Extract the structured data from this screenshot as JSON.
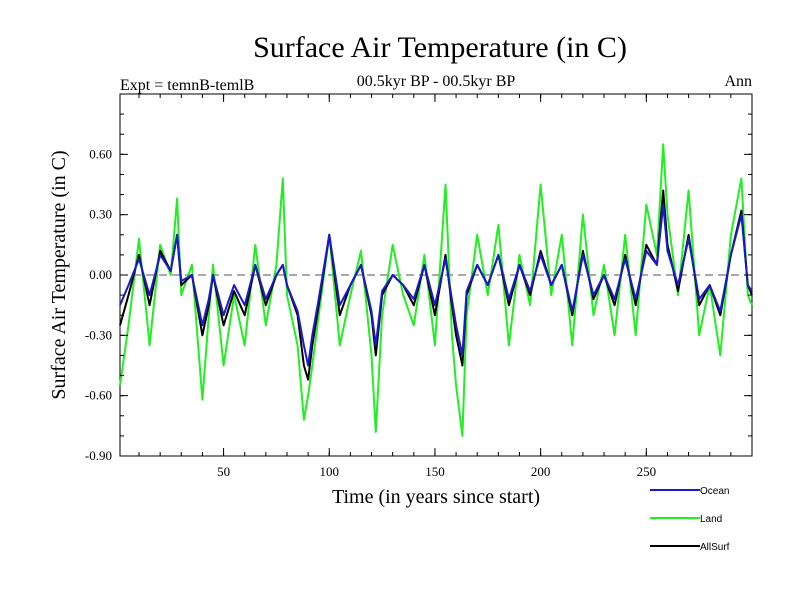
{
  "chart_data": {
    "type": "line",
    "title": "Surface Air Temperature (in C)",
    "subtitle_left": "Expt = temnB-temlB",
    "subtitle_center": "00.5kyr BP - 00.5kyr BP",
    "subtitle_right": "Ann",
    "xlabel": "Time (in years since start)",
    "ylabel": "Surface Air Temperature (in C)",
    "xlim": [
      1,
      300
    ],
    "ylim": [
      -0.9,
      0.9
    ],
    "xticks": [
      50,
      100,
      150,
      200,
      250
    ],
    "xtick_labels": [
      "50",
      "100",
      "150",
      "200",
      "250"
    ],
    "yticks": [
      -0.9,
      -0.6,
      -0.3,
      0.0,
      0.3,
      0.6
    ],
    "ytick_labels": [
      "-0.90",
      "-0.60",
      "-0.30",
      "0.00",
      "0.30",
      "0.60"
    ],
    "zero_line": 0.0,
    "legend_position": "bottom-right",
    "series": [
      {
        "name": "Land",
        "color": "#22ee22",
        "x": [
          1,
          5,
          10,
          15,
          20,
          25,
          28,
          30,
          35,
          40,
          43,
          45,
          50,
          55,
          60,
          65,
          70,
          75,
          78,
          80,
          85,
          88,
          90,
          92,
          95,
          100,
          105,
          110,
          115,
          120,
          122,
          125,
          130,
          135,
          140,
          145,
          150,
          155,
          158,
          160,
          163,
          165,
          170,
          175,
          180,
          185,
          190,
          195,
          200,
          205,
          210,
          215,
          220,
          225,
          230,
          235,
          240,
          245,
          250,
          255,
          258,
          260,
          265,
          270,
          275,
          280,
          285,
          290,
          295,
          298,
          300
        ],
        "values": [
          -0.55,
          -0.25,
          0.18,
          -0.35,
          0.15,
          0.0,
          0.38,
          -0.1,
          0.05,
          -0.62,
          -0.2,
          0.05,
          -0.45,
          -0.1,
          -0.35,
          0.15,
          -0.25,
          0.05,
          0.48,
          -0.1,
          -0.35,
          -0.72,
          -0.6,
          -0.45,
          -0.2,
          0.2,
          -0.35,
          -0.1,
          0.12,
          -0.4,
          -0.78,
          -0.2,
          0.15,
          -0.1,
          -0.25,
          0.1,
          -0.35,
          0.45,
          -0.3,
          -0.55,
          -0.8,
          -0.2,
          0.2,
          -0.1,
          0.25,
          -0.35,
          0.1,
          -0.15,
          0.45,
          -0.1,
          0.2,
          -0.35,
          0.3,
          -0.2,
          0.05,
          -0.3,
          0.2,
          -0.3,
          0.35,
          0.1,
          0.65,
          0.3,
          -0.1,
          0.42,
          -0.3,
          -0.05,
          -0.4,
          0.2,
          0.48,
          -0.1,
          -0.15
        ]
      },
      {
        "name": "AllSurf",
        "color": "#000000",
        "x": [
          1,
          5,
          10,
          15,
          20,
          25,
          28,
          30,
          35,
          40,
          43,
          45,
          50,
          55,
          60,
          65,
          70,
          75,
          78,
          80,
          85,
          88,
          90,
          92,
          95,
          100,
          105,
          110,
          115,
          120,
          122,
          125,
          130,
          135,
          140,
          145,
          150,
          155,
          158,
          160,
          163,
          165,
          170,
          175,
          180,
          185,
          190,
          195,
          200,
          205,
          210,
          215,
          220,
          225,
          230,
          235,
          240,
          245,
          250,
          255,
          258,
          260,
          265,
          270,
          275,
          280,
          285,
          290,
          295,
          298,
          300
        ],
        "values": [
          -0.25,
          -0.1,
          0.1,
          -0.15,
          0.12,
          0.02,
          0.2,
          -0.05,
          0.0,
          -0.3,
          -0.15,
          0.0,
          -0.25,
          -0.08,
          -0.2,
          0.05,
          -0.15,
          0.0,
          0.05,
          -0.05,
          -0.2,
          -0.45,
          -0.52,
          -0.35,
          -0.15,
          0.2,
          -0.2,
          -0.05,
          0.05,
          -0.2,
          -0.4,
          -0.1,
          0.0,
          -0.05,
          -0.15,
          0.05,
          -0.2,
          0.1,
          -0.15,
          -0.3,
          -0.45,
          -0.1,
          0.05,
          -0.05,
          0.1,
          -0.15,
          0.05,
          -0.1,
          0.12,
          -0.05,
          0.05,
          -0.2,
          0.12,
          -0.12,
          0.0,
          -0.15,
          0.1,
          -0.15,
          0.15,
          0.05,
          0.42,
          0.15,
          -0.08,
          0.2,
          -0.15,
          -0.05,
          -0.2,
          0.1,
          0.32,
          -0.05,
          -0.1
        ]
      },
      {
        "name": "Ocean",
        "color": "#1a1acc",
        "x": [
          1,
          5,
          10,
          15,
          20,
          25,
          28,
          30,
          35,
          40,
          43,
          45,
          50,
          55,
          60,
          65,
          70,
          75,
          78,
          80,
          85,
          88,
          90,
          92,
          95,
          100,
          105,
          110,
          115,
          120,
          122,
          125,
          130,
          135,
          140,
          145,
          150,
          155,
          158,
          160,
          163,
          165,
          170,
          175,
          180,
          185,
          190,
          195,
          200,
          205,
          210,
          215,
          220,
          225,
          230,
          235,
          240,
          245,
          250,
          255,
          258,
          260,
          265,
          270,
          275,
          280,
          285,
          290,
          295,
          298,
          300
        ],
        "values": [
          -0.15,
          -0.05,
          0.08,
          -0.1,
          0.1,
          0.02,
          0.2,
          -0.03,
          0.0,
          -0.25,
          -0.12,
          0.0,
          -0.2,
          -0.05,
          -0.15,
          0.05,
          -0.12,
          0.0,
          0.05,
          -0.05,
          -0.18,
          -0.35,
          -0.45,
          -0.3,
          -0.12,
          0.2,
          -0.15,
          -0.05,
          0.05,
          -0.18,
          -0.35,
          -0.08,
          0.0,
          -0.05,
          -0.12,
          0.05,
          -0.15,
          0.08,
          -0.12,
          -0.25,
          -0.4,
          -0.08,
          0.05,
          -0.05,
          0.1,
          -0.12,
          0.05,
          -0.08,
          0.1,
          -0.05,
          0.05,
          -0.18,
          0.1,
          -0.1,
          0.0,
          -0.12,
          0.08,
          -0.12,
          0.12,
          0.05,
          0.35,
          0.12,
          -0.05,
          0.18,
          -0.12,
          -0.05,
          -0.18,
          0.1,
          0.3,
          -0.05,
          -0.08
        ]
      }
    ],
    "legend_order": [
      "Ocean",
      "Land",
      "AllSurf"
    ]
  }
}
